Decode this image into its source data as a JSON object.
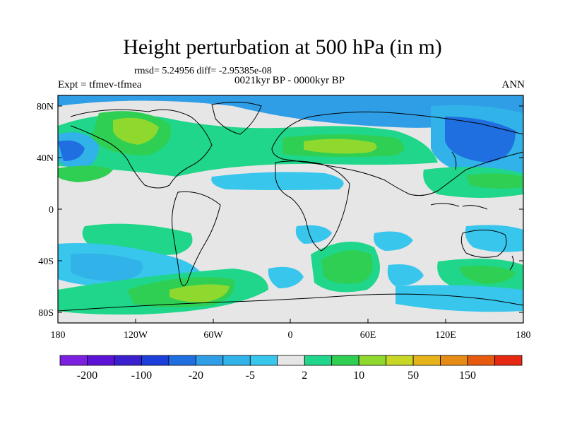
{
  "title": "Height perturbation at 500 hPa (in m)",
  "stats": "rmsd= 5.24956 diff= -2.95385e-08",
  "period": "0021kyr BP - 0000kyr BP",
  "experiment": "Expt = tfmev-tfmea",
  "season": "ANN",
  "map": {
    "lat_ticks": [
      "80N",
      "40N",
      "0",
      "40S",
      "80S"
    ],
    "lon_ticks": [
      "180",
      "120W",
      "60W",
      "0",
      "60E",
      "120E",
      "180"
    ]
  },
  "colorbar": {
    "colors": [
      "#7b1fe0",
      "#5b12d6",
      "#3a1fce",
      "#1b3fd8",
      "#1f6fe0",
      "#2f9ee6",
      "#31b2e8",
      "#38c6ec",
      "#e6e6e6",
      "#1fd68a",
      "#2ecf52",
      "#8fd82e",
      "#c8d626",
      "#e6b31a",
      "#e68c16",
      "#e65a10",
      "#e62812"
    ],
    "labels": [
      "-200",
      "-100",
      "-20",
      "-5",
      "2",
      "10",
      "50",
      "150"
    ]
  }
}
